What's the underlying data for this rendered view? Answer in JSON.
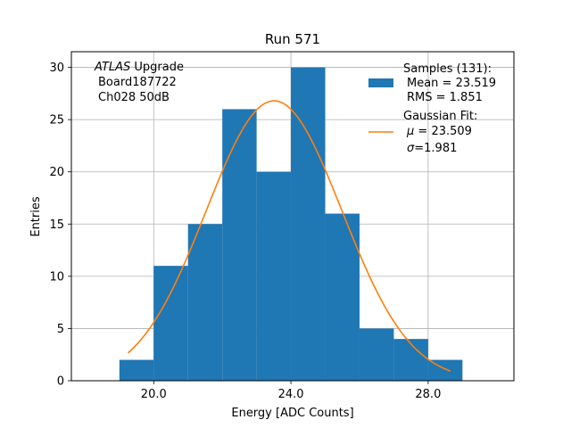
{
  "chart_data": {
    "type": "bar",
    "title": "Run 571",
    "xlabel": "Energy [ADC Counts]",
    "ylabel": "Entries",
    "xlim": [
      17.6,
      30.5
    ],
    "ylim": [
      0,
      31.5
    ],
    "x_ticks": [
      20.0,
      24.0,
      28.0
    ],
    "x_tick_labels": [
      "20.0",
      "24.0",
      "28.0"
    ],
    "y_ticks": [
      0,
      5,
      10,
      15,
      20,
      25,
      30
    ],
    "y_tick_labels": [
      "0",
      "5",
      "10",
      "15",
      "20",
      "25",
      "30"
    ],
    "grid": true,
    "legend_placement": "top-right",
    "histogram": {
      "name": "Samples (131):",
      "bins": [
        19,
        20,
        21,
        22,
        23,
        24,
        25,
        26,
        27,
        28,
        29
      ],
      "counts": [
        2,
        11,
        15,
        26,
        20,
        30,
        16,
        5,
        4,
        2
      ],
      "color": "#1f77b4"
    },
    "fit": {
      "name": "Gaussian Fit:",
      "type": "gaussian",
      "mu": 23.509,
      "sigma": 1.981,
      "peak": 26.8,
      "x_range": [
        19.25,
        28.65
      ],
      "color": "#ff7f0e"
    },
    "annotation": {
      "line1_italic": "ATLAS",
      "line1_rest": " Upgrade",
      "line2": "Board187722",
      "line3": "Ch028 50dB"
    },
    "legend": {
      "hist_header": "Samples (131):",
      "hist_mean": "Mean = 23.519",
      "hist_rms": "RMS = 1.851",
      "fit_header": "Gaussian Fit:",
      "fit_mu_symbol": "μ",
      "fit_mu_value": " = 23.509",
      "fit_sigma_symbol": "σ",
      "fit_sigma_value": "=1.981"
    }
  }
}
